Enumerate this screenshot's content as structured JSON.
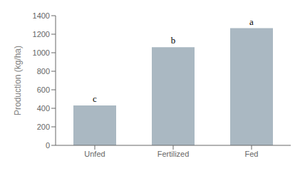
{
  "chart_data": {
    "type": "bar",
    "categories": [
      "Unfed",
      "Fertilized",
      "Fed"
    ],
    "values": [
      430,
      1060,
      1265
    ],
    "color": "#aab8c2",
    "ylabel": "Production (kg/ha)",
    "ylim": [
      0,
      1400
    ],
    "yticks": [
      0,
      200,
      400,
      600,
      800,
      1000,
      1200,
      1400
    ],
    "annotations": [
      "c",
      "b",
      "a"
    ],
    "grid": false
  }
}
